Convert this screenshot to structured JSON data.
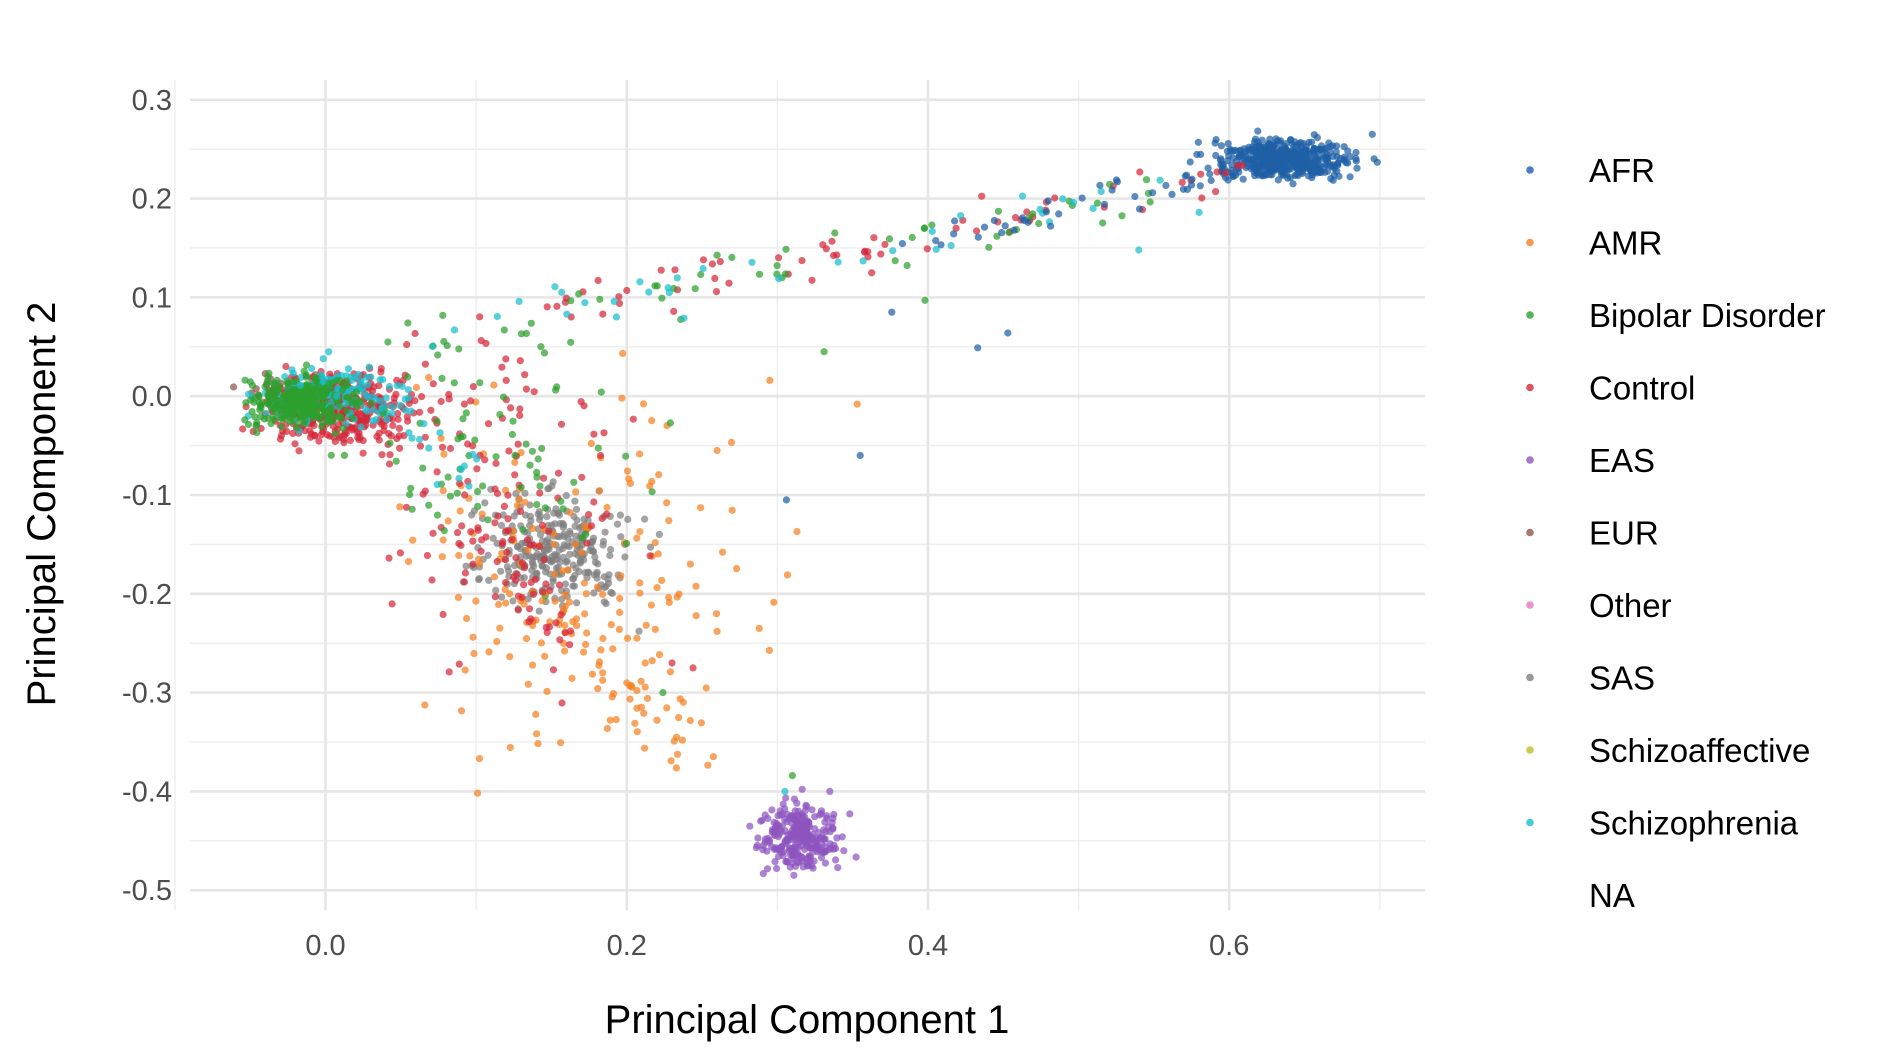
{
  "chart_data": {
    "type": "scatter",
    "xlabel": "Principal Component 1",
    "ylabel": "Principal Component 2",
    "xlim": [
      -0.09,
      0.73
    ],
    "ylim": [
      -0.52,
      0.32
    ],
    "x_ticks": [
      "0.0",
      "0.2",
      "0.4",
      "0.6"
    ],
    "x_tick_values": [
      0.0,
      0.2,
      0.4,
      0.6
    ],
    "y_ticks": [
      "0.3",
      "0.2",
      "0.1",
      "0.0",
      "-0.1",
      "-0.2",
      "-0.3",
      "-0.4",
      "-0.5"
    ],
    "y_tick_values": [
      0.3,
      0.2,
      0.1,
      0.0,
      -0.1,
      -0.2,
      -0.3,
      -0.4,
      -0.5
    ],
    "grid": true,
    "legend_position": "right",
    "legend": [
      {
        "label": "AFR",
        "color": "#1f5fa6"
      },
      {
        "label": "AMR",
        "color": "#f57f20"
      },
      {
        "label": "Bipolar Disorder",
        "color": "#2ca02c"
      },
      {
        "label": "Control",
        "color": "#d62739"
      },
      {
        "label": "EAS",
        "color": "#8e55bf"
      },
      {
        "label": "EUR",
        "color": "#8c564b"
      },
      {
        "label": "Other",
        "color": "#e377c2"
      },
      {
        "label": "SAS",
        "color": "#7f7f7f"
      },
      {
        "label": "Schizoaffective",
        "color": "#bcbd22"
      },
      {
        "label": "Schizophrenia",
        "color": "#17becf"
      },
      {
        "label": "NA",
        "color": ""
      }
    ],
    "clusters": [
      {
        "series": "EUR",
        "color": "#8c564b",
        "x": [
          -0.05,
          0.02
        ],
        "y": [
          -0.02,
          0.02
        ],
        "n": 80
      },
      {
        "series": "Control",
        "color": "#d62739",
        "x": [
          -0.04,
          0.06
        ],
        "y": [
          -0.05,
          0.02
        ],
        "n": 340
      },
      {
        "series": "Schizophrenia",
        "color": "#17becf",
        "x": [
          -0.04,
          0.05
        ],
        "y": [
          -0.03,
          0.03
        ],
        "n": 160
      },
      {
        "series": "Bipolar Disorder",
        "color": "#2ca02c",
        "x": [
          -0.05,
          0.02
        ],
        "y": [
          -0.03,
          0.02
        ],
        "n": 300
      },
      {
        "series": "AFR",
        "color": "#1f5fa6",
        "x": [
          0.59,
          0.68
        ],
        "y": [
          0.22,
          0.26
        ],
        "n": 460
      },
      {
        "series": "SAS",
        "color": "#7f7f7f",
        "x": [
          0.1,
          0.2
        ],
        "y": [
          -0.21,
          -0.1
        ],
        "n": 290
      },
      {
        "series": "EAS",
        "color": "#8e55bf",
        "x": [
          0.29,
          0.34
        ],
        "y": [
          -0.48,
          -0.41
        ],
        "n": 270
      },
      {
        "series": "AMR",
        "color": "#f57f20",
        "x": [
          0.05,
          0.28
        ],
        "y": [
          -0.35,
          0.02
        ],
        "n": 150
      },
      {
        "series": "Control",
        "color": "#d62739",
        "x": [
          0.05,
          0.2
        ],
        "y": [
          -0.25,
          0.07
        ],
        "n": 110
      },
      {
        "series": "Bipolar Disorder",
        "color": "#2ca02c",
        "x": [
          0.02,
          0.2
        ],
        "y": [
          -0.18,
          0.07
        ],
        "n": 70
      }
    ],
    "streaks": [
      {
        "series": "Control",
        "color": "#d62739",
        "from": [
          0.05,
          0.05
        ],
        "to": [
          0.6,
          0.23
        ],
        "spread": 0.012,
        "n": 70
      },
      {
        "series": "Bipolar Disorder",
        "color": "#2ca02c",
        "from": [
          0.05,
          0.05
        ],
        "to": [
          0.55,
          0.21
        ],
        "spread": 0.012,
        "n": 55
      },
      {
        "series": "Schizophrenia",
        "color": "#17becf",
        "from": [
          0.08,
          0.06
        ],
        "to": [
          0.58,
          0.22
        ],
        "spread": 0.012,
        "n": 35
      },
      {
        "series": "AFR",
        "color": "#1f5fa6",
        "from": [
          0.4,
          0.16
        ],
        "to": [
          0.6,
          0.23
        ],
        "spread": 0.01,
        "n": 40
      },
      {
        "series": "AMR",
        "color": "#f57f20",
        "from": [
          0.14,
          -0.2
        ],
        "to": [
          0.24,
          -0.37
        ],
        "spread": 0.015,
        "n": 70
      },
      {
        "series": "Control",
        "color": "#d62739",
        "from": [
          0.1,
          -0.13
        ],
        "to": [
          0.16,
          -0.24
        ],
        "spread": 0.012,
        "n": 40
      },
      {
        "series": "Schizophrenia",
        "color": "#17becf",
        "from": [
          0.0,
          0.02
        ],
        "to": [
          0.1,
          -0.08
        ],
        "spread": 0.012,
        "n": 25
      }
    ],
    "points": [
      {
        "series": "AFR",
        "color": "#1f5fa6",
        "x": 0.355,
        "y": -0.06
      },
      {
        "series": "AFR",
        "color": "#1f5fa6",
        "x": 0.306,
        "y": -0.105
      },
      {
        "series": "AFR",
        "color": "#1f5fa6",
        "x": 0.433,
        "y": 0.049
      },
      {
        "series": "AFR",
        "color": "#1f5fa6",
        "x": 0.453,
        "y": 0.064
      },
      {
        "series": "AFR",
        "color": "#1f5fa6",
        "x": 0.376,
        "y": 0.085
      },
      {
        "series": "AFR",
        "color": "#1f5fa6",
        "x": 0.695,
        "y": 0.265
      },
      {
        "series": "AMR",
        "color": "#f57f20",
        "x": 0.353,
        "y": -0.008
      },
      {
        "series": "AMR",
        "color": "#f57f20",
        "x": 0.313,
        "y": -0.137
      },
      {
        "series": "AMR",
        "color": "#f57f20",
        "x": 0.288,
        "y": -0.235
      },
      {
        "series": "AMR",
        "color": "#f57f20",
        "x": 0.26,
        "y": -0.238
      },
      {
        "series": "AMR",
        "color": "#f57f20",
        "x": 0.295,
        "y": 0.016
      },
      {
        "series": "AMR",
        "color": "#f57f20",
        "x": 0.26,
        "y": -0.055
      },
      {
        "series": "Bipolar Disorder",
        "color": "#2ca02c",
        "x": 0.31,
        "y": -0.384
      },
      {
        "series": "Bipolar Disorder",
        "color": "#2ca02c",
        "x": 0.398,
        "y": 0.097
      },
      {
        "series": "Bipolar Disorder",
        "color": "#2ca02c",
        "x": 0.331,
        "y": 0.045
      },
      {
        "series": "Bipolar Disorder",
        "color": "#2ca02c",
        "x": 0.229,
        "y": -0.027
      },
      {
        "series": "Bipolar Disorder",
        "color": "#2ca02c",
        "x": 0.224,
        "y": -0.3
      },
      {
        "series": "Control",
        "color": "#d62739",
        "x": 0.244,
        "y": -0.275
      },
      {
        "series": "Control",
        "color": "#d62739",
        "x": 0.23,
        "y": -0.27
      },
      {
        "series": "Schizophrenia",
        "color": "#17becf",
        "x": 0.54,
        "y": 0.148
      },
      {
        "series": "Schizophrenia",
        "color": "#17becf",
        "x": 0.58,
        "y": 0.186
      },
      {
        "series": "Schizophrenia",
        "color": "#17becf",
        "x": 0.305,
        "y": -0.4
      }
    ]
  }
}
